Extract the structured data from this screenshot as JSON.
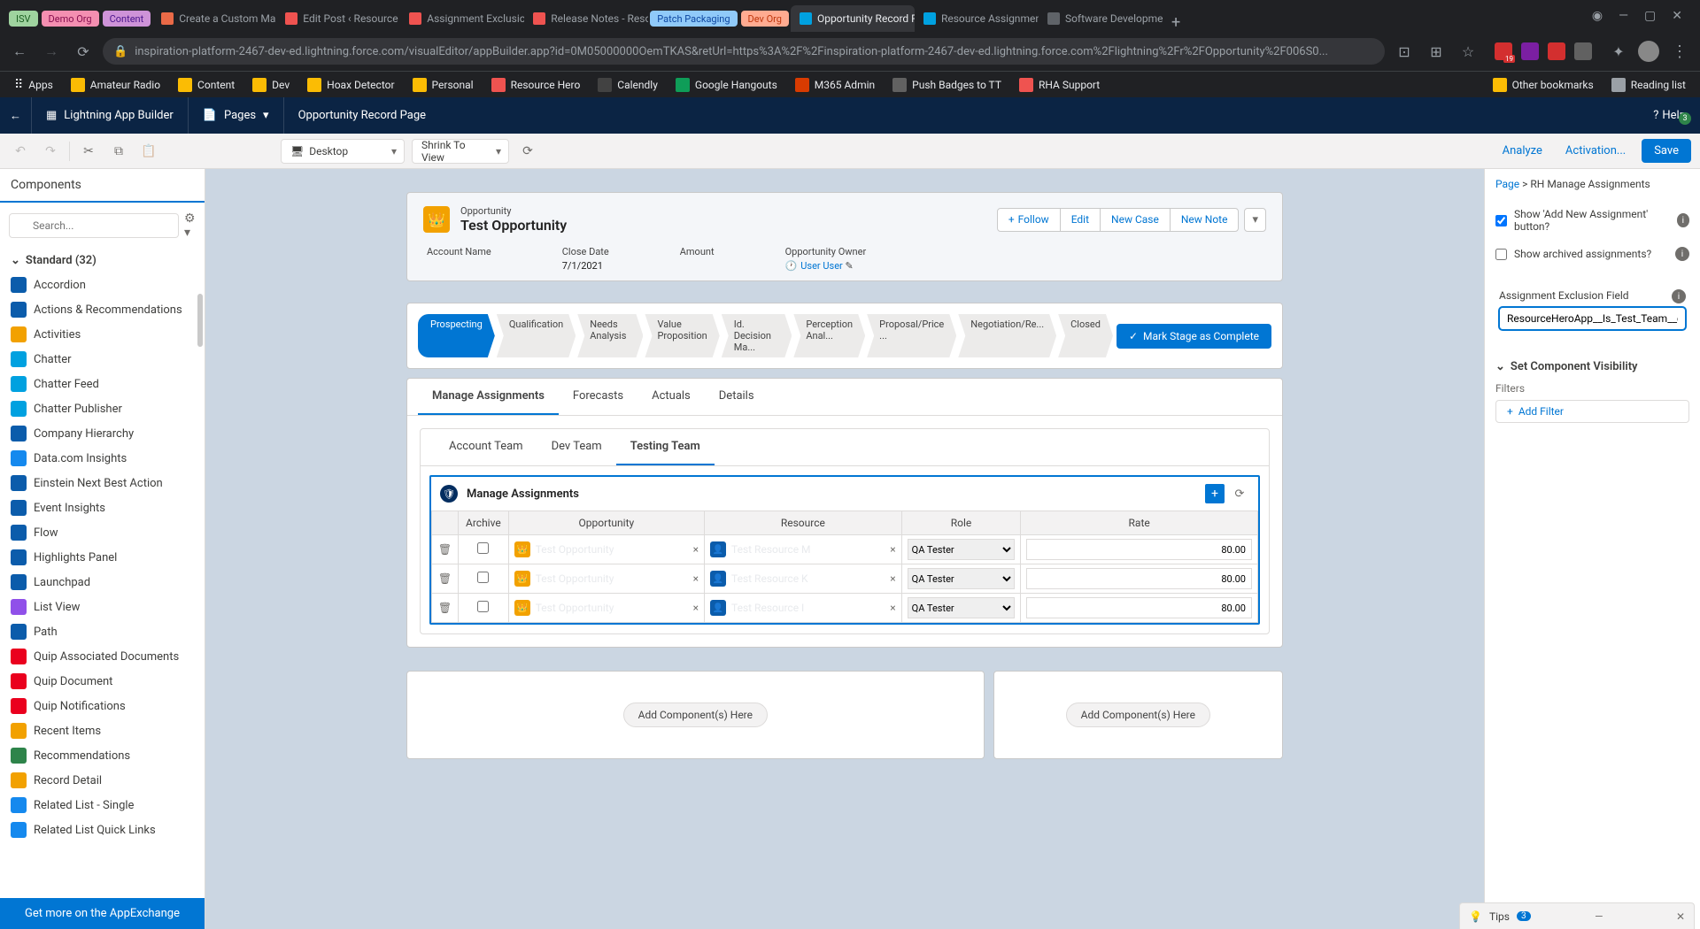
{
  "browser": {
    "pills": [
      {
        "label": "ISV",
        "bg": "#9fd39f",
        "fg": "#1b5e20"
      },
      {
        "label": "Demo Org",
        "bg": "#f48fb1",
        "fg": "#880e4f"
      },
      {
        "label": "Content",
        "bg": "#ce93d8",
        "fg": "#4a148c"
      }
    ],
    "tabs": [
      {
        "label": "Create a Custom Ma",
        "active": false,
        "favicon": "#ea6a47"
      },
      {
        "label": "Edit Post ‹ Resource",
        "active": false,
        "favicon": "#ef5350"
      },
      {
        "label": "Assignment Exclusio",
        "active": false,
        "favicon": "#ef5350"
      },
      {
        "label": "Release Notes - Reso",
        "active": false,
        "favicon": "#ef5350"
      }
    ],
    "pills2": [
      {
        "label": "Patch Packaging",
        "bg": "#90caf9",
        "fg": "#0d47a1"
      },
      {
        "label": "Dev Org",
        "bg": "#ffab91",
        "fg": "#bf360c"
      }
    ],
    "tabs2": [
      {
        "label": "Opportunity Record P",
        "active": true,
        "favicon": "#00a1e0"
      },
      {
        "label": "Resource Assignmen",
        "active": false,
        "favicon": "#00a1e0"
      },
      {
        "label": "Software Developme",
        "active": false,
        "favicon": "#5f6368"
      }
    ],
    "url": "inspiration-platform-2467-dev-ed.lightning.force.com/visualEditor/appBuilder.app?id=0M05000000OemTKAS&retUrl=https%3A%2F%2Finspiration-platform-2467-dev-ed.lightning.force.com%2Flightning%2Fr%2FOpportunity%2F006S0...",
    "bookmarks": [
      {
        "label": "Apps",
        "color": "#ffffff"
      },
      {
        "label": "Amateur Radio",
        "color": "#fbbc04"
      },
      {
        "label": "Content",
        "color": "#fbbc04"
      },
      {
        "label": "Dev",
        "color": "#fbbc04"
      },
      {
        "label": "Hoax Detector",
        "color": "#fbbc04"
      },
      {
        "label": "Personal",
        "color": "#fbbc04"
      },
      {
        "label": "Resource Hero",
        "color": "#ef5350"
      },
      {
        "label": "Calendly",
        "color": "#424242"
      },
      {
        "label": "Google Hangouts",
        "color": "#0f9d58"
      },
      {
        "label": "M365 Admin",
        "color": "#d83b01"
      },
      {
        "label": "Push Badges to TT",
        "color": "#616161"
      },
      {
        "label": "RHA Support",
        "color": "#ef5350"
      }
    ],
    "right_bookmarks": [
      {
        "label": "Other bookmarks",
        "color": "#fbbc04"
      },
      {
        "label": "Reading list",
        "color": "#9aa0a6"
      }
    ],
    "ext_icons": [
      "#d32f2f",
      "#7b1fa2",
      "#d32f2f",
      "#616161"
    ],
    "ext_badge": "19"
  },
  "header": {
    "app_builder": "Lightning App Builder",
    "pages": "Pages",
    "title": "Opportunity Record Page",
    "help": "Help",
    "help_badge": "3"
  },
  "toolbar": {
    "device": "Desktop",
    "shrink": "Shrink To View",
    "analyze": "Analyze",
    "activation": "Activation...",
    "save": "Save"
  },
  "left": {
    "title": "Components",
    "search_placeholder": "Search...",
    "section": "Standard (32)",
    "components": [
      {
        "label": "Accordion",
        "color": "#0b5cab"
      },
      {
        "label": "Actions & Recommendations",
        "color": "#0b5cab"
      },
      {
        "label": "Activities",
        "color": "#f2a100"
      },
      {
        "label": "Chatter",
        "color": "#00a1e0"
      },
      {
        "label": "Chatter Feed",
        "color": "#00a1e0"
      },
      {
        "label": "Chatter Publisher",
        "color": "#00a1e0"
      },
      {
        "label": "Company Hierarchy",
        "color": "#0b5cab"
      },
      {
        "label": "Data.com Insights",
        "color": "#1589ee"
      },
      {
        "label": "Einstein Next Best Action",
        "color": "#0b5cab"
      },
      {
        "label": "Event Insights",
        "color": "#0b5cab"
      },
      {
        "label": "Flow",
        "color": "#0b5cab"
      },
      {
        "label": "Highlights Panel",
        "color": "#0b5cab"
      },
      {
        "label": "Launchpad",
        "color": "#0b5cab"
      },
      {
        "label": "List View",
        "color": "#9050e9"
      },
      {
        "label": "Path",
        "color": "#0b5cab"
      },
      {
        "label": "Quip Associated Documents",
        "color": "#ea001e"
      },
      {
        "label": "Quip Document",
        "color": "#ea001e"
      },
      {
        "label": "Quip Notifications",
        "color": "#ea001e"
      },
      {
        "label": "Recent Items",
        "color": "#f2a100"
      },
      {
        "label": "Recommendations",
        "color": "#2e844a"
      },
      {
        "label": "Record Detail",
        "color": "#f2a100"
      },
      {
        "label": "Related List - Single",
        "color": "#1589ee"
      },
      {
        "label": "Related List Quick Links",
        "color": "#1589ee"
      }
    ],
    "footer": "Get more on the AppExchange"
  },
  "record": {
    "type": "Opportunity",
    "name": "Test Opportunity",
    "actions": {
      "follow": "Follow",
      "edit": "Edit",
      "new_case": "New Case",
      "new_note": "New Note"
    },
    "fields": [
      {
        "label": "Account Name",
        "value": ""
      },
      {
        "label": "Close Date",
        "value": "7/1/2021"
      },
      {
        "label": "Amount",
        "value": ""
      },
      {
        "label": "Opportunity Owner",
        "value": "User User",
        "link": true
      }
    ]
  },
  "path": {
    "stages": [
      "Prospecting",
      "Qualification",
      "Needs Analysis",
      "Value Proposition",
      "Id. Decision Ma...",
      "Perception Anal...",
      "Proposal/Price ...",
      "Negotiation/Re...",
      "Closed"
    ],
    "active": 0,
    "complete": "Mark Stage as Complete"
  },
  "tabs": {
    "main": [
      "Manage Assignments",
      "Forecasts",
      "Actuals",
      "Details"
    ],
    "main_active": 0,
    "inner": [
      "Account Team",
      "Dev Team",
      "Testing Team"
    ],
    "inner_active": 2
  },
  "manage": {
    "title": "Manage Assignments",
    "columns": [
      "",
      "Archive",
      "Opportunity",
      "Resource",
      "Role",
      "Rate"
    ],
    "rows": [
      {
        "opp": "Test Opportunity",
        "resource": "Test Resource M",
        "role": "QA Tester",
        "rate": "80.00"
      },
      {
        "opp": "Test Opportunity",
        "resource": "Test Resource K",
        "role": "QA Tester",
        "rate": "80.00"
      },
      {
        "opp": "Test Opportunity",
        "resource": "Test Resource I",
        "role": "QA Tester",
        "rate": "80.00"
      }
    ]
  },
  "dropzone": {
    "label": "Add Component(s) Here"
  },
  "right": {
    "crumb_page": "Page",
    "crumb_comp": "RH Manage Assignments",
    "prop1": "Show 'Add New Assignment' button?",
    "prop1_checked": true,
    "prop2": "Show archived assignments?",
    "prop2_checked": false,
    "field_label": "Assignment Exclusion Field",
    "field_value": "ResourceHeroApp__Is_Test_Team__c",
    "visibility": "Set Component Visibility",
    "filters": "Filters",
    "add_filter": "Add Filter"
  },
  "tips": {
    "label": "Tips",
    "count": "3"
  }
}
